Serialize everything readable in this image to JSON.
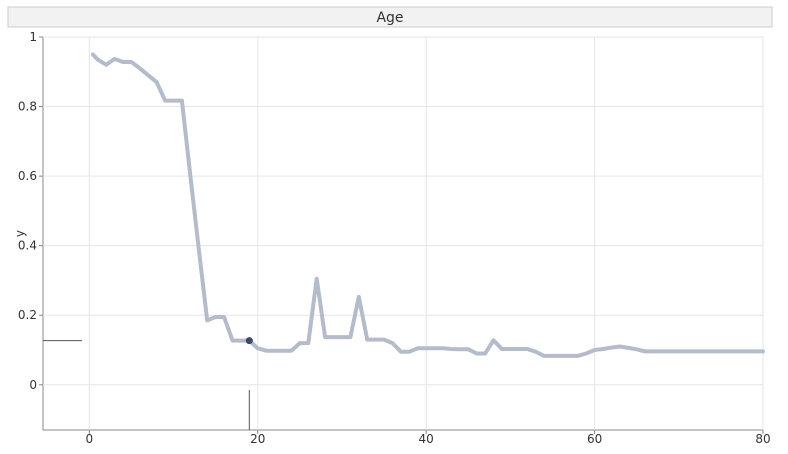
{
  "chart_data": {
    "type": "line",
    "title": "Age",
    "xlabel": "",
    "ylabel": "y",
    "xlim": [
      -5.5,
      80
    ],
    "ylim": [
      -0.13,
      1
    ],
    "grid": true,
    "legend": "none",
    "x_ticks": [
      0,
      20,
      40,
      60,
      80
    ],
    "y_ticks": [
      0,
      0.2,
      0.4,
      0.6,
      0.8,
      1
    ],
    "line_color": "#b4bccb",
    "marker_color": "#3b4a6b",
    "series": [
      {
        "x": [
          0.42,
          1,
          2,
          3,
          4,
          5,
          6,
          7,
          8,
          9,
          10,
          11,
          12,
          13,
          14,
          15,
          16,
          17,
          18,
          19,
          20,
          21,
          22,
          23,
          24,
          25,
          26,
          27,
          28,
          29,
          30,
          31,
          32,
          33,
          34,
          35,
          36,
          37,
          38,
          39,
          40,
          41,
          42,
          43,
          44,
          45,
          46,
          47,
          48,
          49,
          50,
          51,
          52,
          53,
          54,
          55,
          56,
          57,
          58,
          59,
          60,
          61,
          62,
          63,
          64,
          65,
          66,
          67,
          68,
          69,
          70,
          71,
          72,
          73,
          74,
          75,
          76,
          77,
          78,
          79,
          80
        ],
        "values": [
          0.95,
          0.935,
          0.92,
          0.937,
          0.928,
          0.928,
          0.91,
          0.89,
          0.87,
          0.817,
          0.817,
          0.817,
          0.6,
          0.39,
          0.185,
          0.195,
          0.195,
          0.127,
          0.127,
          0.127,
          0.105,
          0.098,
          0.098,
          0.098,
          0.098,
          0.12,
          0.12,
          0.305,
          0.137,
          0.137,
          0.137,
          0.137,
          0.253,
          0.13,
          0.13,
          0.13,
          0.12,
          0.095,
          0.095,
          0.105,
          0.105,
          0.105,
          0.105,
          0.103,
          0.102,
          0.102,
          0.09,
          0.09,
          0.128,
          0.103,
          0.103,
          0.103,
          0.103,
          0.095,
          0.083,
          0.083,
          0.083,
          0.083,
          0.083,
          0.09,
          0.1,
          0.103,
          0.107,
          0.11,
          0.106,
          0.102,
          0.096,
          0.096,
          0.096,
          0.096,
          0.096,
          0.096,
          0.096,
          0.096,
          0.096,
          0.096,
          0.096,
          0.096,
          0.096,
          0.096,
          0.096
        ]
      }
    ],
    "marker_point": {
      "x": 19,
      "y": 0.127
    },
    "reference_x": 19,
    "reference_y": 0.127
  }
}
